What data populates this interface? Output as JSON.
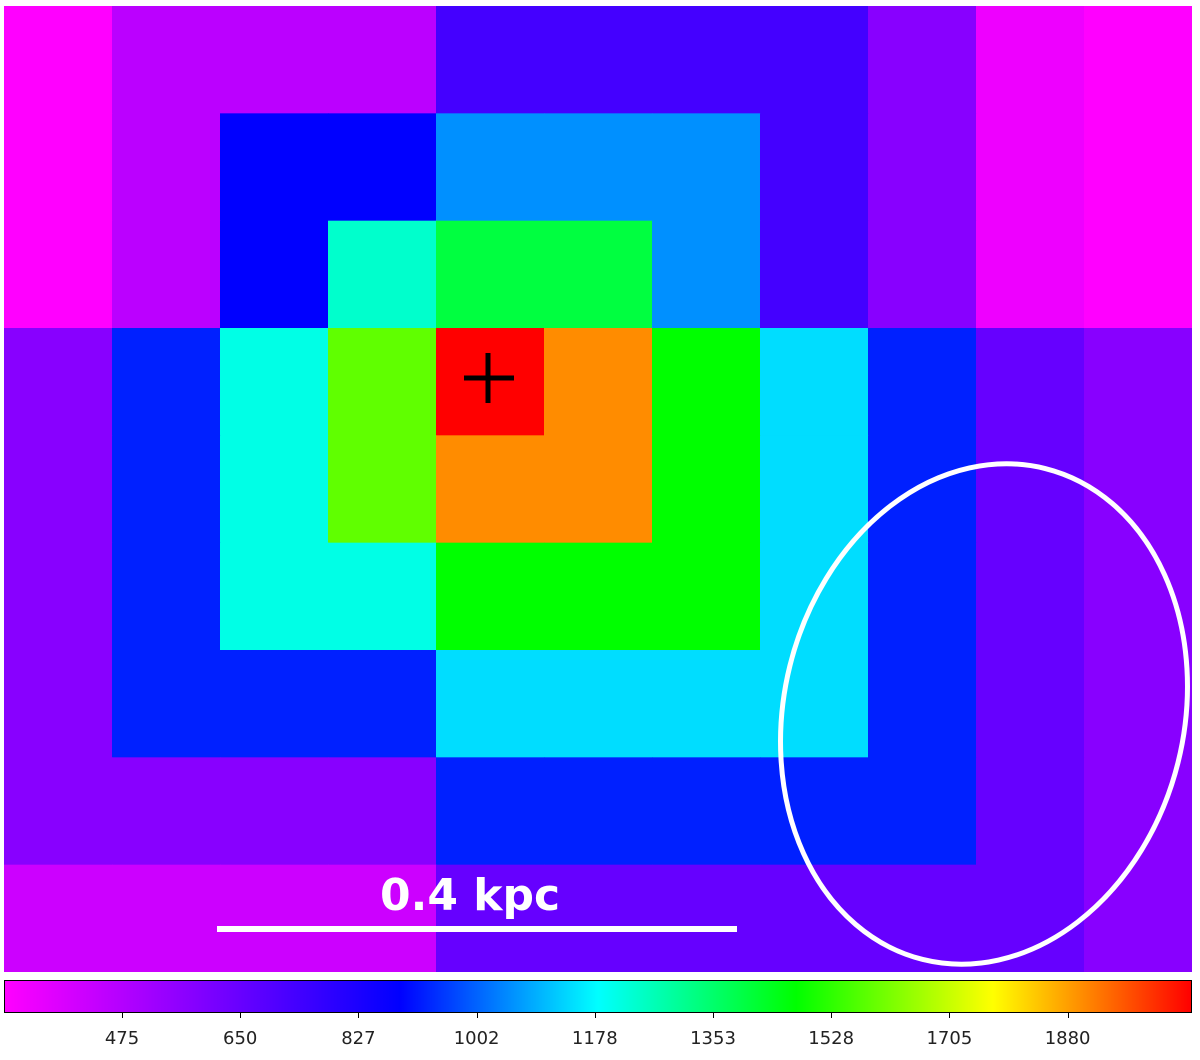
{
  "image": {
    "grid_cols": 11,
    "grid_rows": 9,
    "pixels": [
      [
        "#f0f",
        "#b0f",
        "#b0f",
        "#b0f",
        "#40f",
        "#40f",
        "#40f",
        "#40f",
        "#80f",
        "#e0f",
        "#f0f"
      ],
      [
        "#f0f",
        "#b0f",
        "#00f",
        "#00f",
        "#0090ff",
        "#0090ff",
        "#0090ff",
        "#40f",
        "#80f",
        "#e0f",
        "#f0f"
      ],
      [
        "#f0f",
        "#b0f",
        "#00f",
        "#00ffcc",
        "#00ff40",
        "#00ff40",
        "#0090ff",
        "#40f",
        "#80f",
        "#e0f",
        "#f0f"
      ],
      [
        "#80f",
        "#0020ff",
        "#00ffe6",
        "#60ff00",
        "#ff0000",
        "#ff8c00",
        "#00ff00",
        "#00ddff",
        "#0020ff",
        "#60f",
        "#80f"
      ],
      [
        "#80f",
        "#0020ff",
        "#00ffe6",
        "#60ff00",
        "#ff8c00",
        "#ff8c00",
        "#00ff00",
        "#00ddff",
        "#0020ff",
        "#60f",
        "#80f"
      ],
      [
        "#80f",
        "#0020ff",
        "#00ffe6",
        "#00ffe6",
        "#00ff00",
        "#00ff00",
        "#00ff00",
        "#00ddff",
        "#0020ff",
        "#60f",
        "#80f"
      ],
      [
        "#80f",
        "#0020ff",
        "#0020ff",
        "#0020ff",
        "#00ddff",
        "#00ddff",
        "#00ddff",
        "#00ddff",
        "#0020ff",
        "#60f",
        "#80f"
      ],
      [
        "#80f",
        "#80f",
        "#80f",
        "#80f",
        "#0020ff",
        "#0020ff",
        "#0020ff",
        "#0020ff",
        "#0020ff",
        "#60f",
        "#80f"
      ],
      [
        "#c0f",
        "#c0f",
        "#c0f",
        "#c0f",
        "#60f",
        "#60f",
        "#60f",
        "#60f",
        "#60f",
        "#60f",
        "#80f"
      ]
    ]
  },
  "marker": "cross-marker",
  "beam": "beam-ellipse",
  "scalebar": {
    "label": "0.4 kpc"
  },
  "colorbar": {
    "stops": [
      "#ff00ff",
      "#8000ff",
      "#0000ff",
      "#00ffff",
      "#00ff00",
      "#ffff00",
      "#ff0000"
    ],
    "tick_labels": [
      "475",
      "650",
      "827",
      "1002",
      "1178",
      "1353",
      "1528",
      "1705",
      "1880"
    ]
  }
}
